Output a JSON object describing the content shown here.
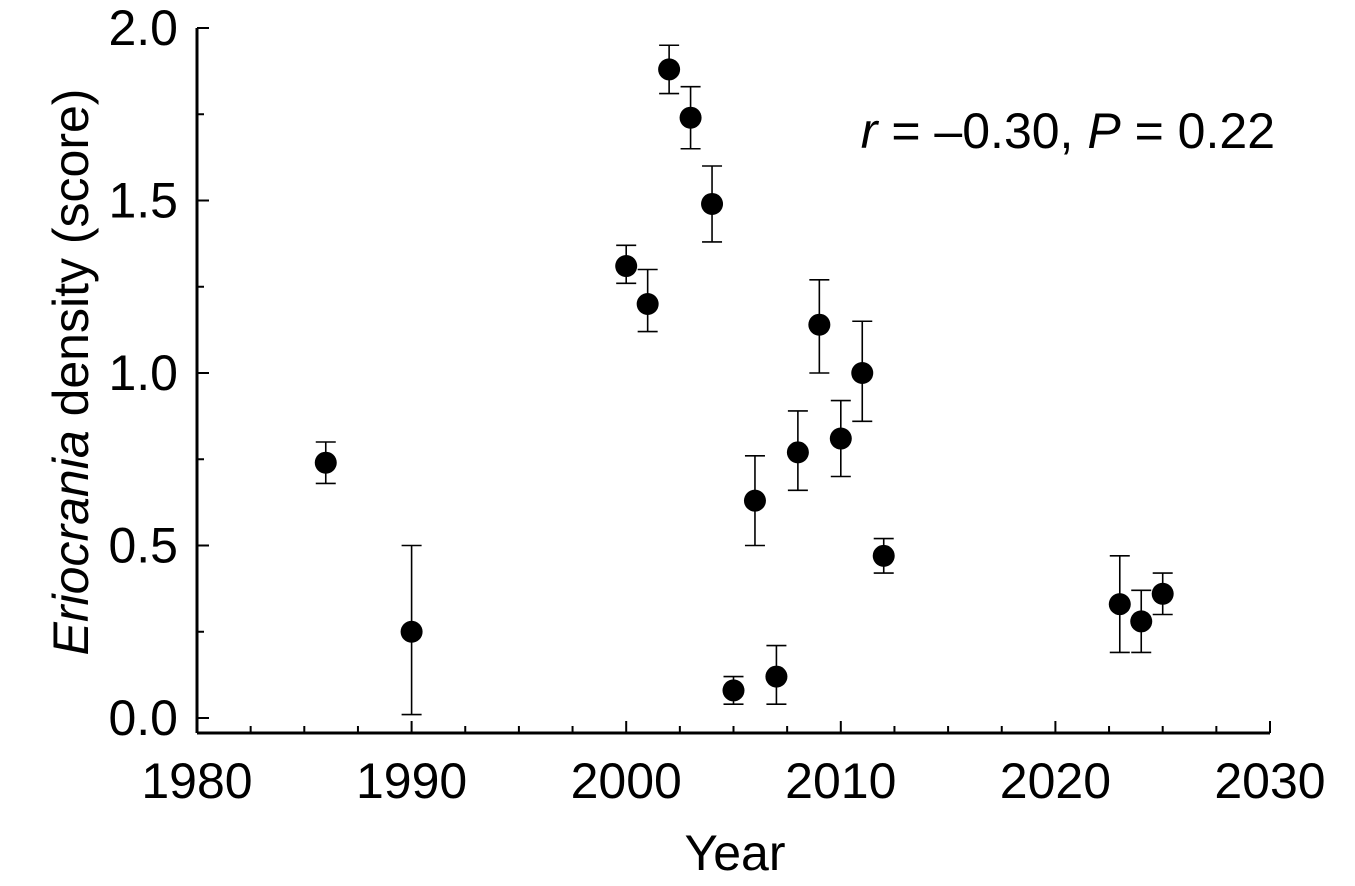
{
  "chart_data": {
    "type": "scatter",
    "title": "",
    "xlabel": "Year",
    "ylabel": {
      "italic": "Eriocrania",
      "rest": " density (score)"
    },
    "xlim": [
      1980,
      2030
    ],
    "ylim": [
      0.0,
      2.0
    ],
    "x_ticks": [
      1980,
      1990,
      2000,
      2010,
      2020,
      2030
    ],
    "x_tick_labels": [
      "1980",
      "1990",
      "2000",
      "2010",
      "2020",
      "2030"
    ],
    "y_ticks": [
      0.0,
      0.5,
      1.0,
      1.5,
      2.0
    ],
    "y_tick_labels": [
      "0.0",
      "0.5",
      "1.0",
      "1.5",
      "2.0"
    ],
    "x_minor_step": 2.5,
    "y_minor_step": 0.25,
    "grid": false,
    "legend": "none",
    "annotation": {
      "r_symbol": "r",
      "r_text": " = –0.30, ",
      "p_symbol": "P",
      "p_text": " = 0.22"
    },
    "points": [
      {
        "x": 1986,
        "y": 0.74,
        "err_low": 0.68,
        "err_high": 0.8
      },
      {
        "x": 1990,
        "y": 0.25,
        "err_low": 0.01,
        "err_high": 0.5
      },
      {
        "x": 2000,
        "y": 1.31,
        "err_low": 1.26,
        "err_high": 1.37
      },
      {
        "x": 2001,
        "y": 1.2,
        "err_low": 1.12,
        "err_high": 1.3
      },
      {
        "x": 2002,
        "y": 1.88,
        "err_low": 1.81,
        "err_high": 1.95
      },
      {
        "x": 2003,
        "y": 1.74,
        "err_low": 1.65,
        "err_high": 1.83
      },
      {
        "x": 2004,
        "y": 1.49,
        "err_low": 1.38,
        "err_high": 1.6
      },
      {
        "x": 2005,
        "y": 0.08,
        "err_low": 0.04,
        "err_high": 0.12
      },
      {
        "x": 2006,
        "y": 0.63,
        "err_low": 0.5,
        "err_high": 0.76
      },
      {
        "x": 2007,
        "y": 0.12,
        "err_low": 0.04,
        "err_high": 0.21
      },
      {
        "x": 2008,
        "y": 0.77,
        "err_low": 0.66,
        "err_high": 0.89
      },
      {
        "x": 2009,
        "y": 1.14,
        "err_low": 1.0,
        "err_high": 1.27
      },
      {
        "x": 2010,
        "y": 0.81,
        "err_low": 0.7,
        "err_high": 0.92
      },
      {
        "x": 2011,
        "y": 1.0,
        "err_low": 0.86,
        "err_high": 1.15
      },
      {
        "x": 2012,
        "y": 0.47,
        "err_low": 0.42,
        "err_high": 0.52
      },
      {
        "x": 2023,
        "y": 0.33,
        "err_low": 0.19,
        "err_high": 0.47
      },
      {
        "x": 2024,
        "y": 0.28,
        "err_low": 0.19,
        "err_high": 0.37
      },
      {
        "x": 2025,
        "y": 0.36,
        "err_low": 0.3,
        "err_high": 0.42
      }
    ]
  }
}
